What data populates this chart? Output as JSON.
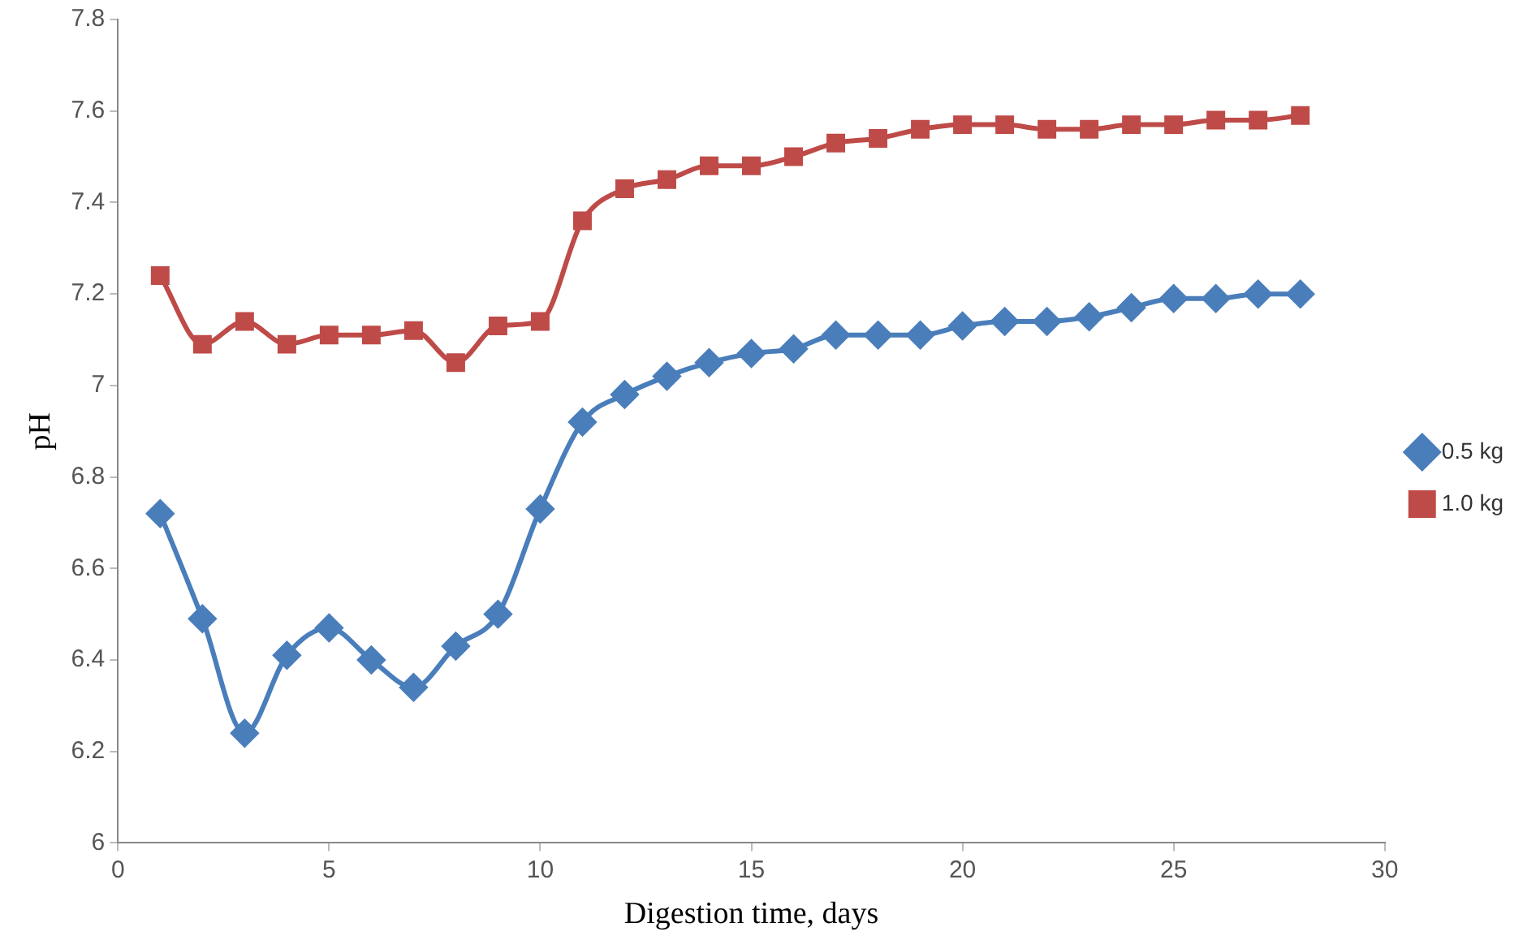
{
  "chart_data": {
    "type": "line",
    "xlabel": "Digestion time, days",
    "ylabel": "pH",
    "x": [
      1,
      2,
      3,
      4,
      5,
      6,
      7,
      8,
      9,
      10,
      11,
      12,
      13,
      14,
      15,
      16,
      17,
      18,
      19,
      20,
      21,
      22,
      23,
      24,
      25,
      26,
      27,
      28
    ],
    "series": [
      {
        "name": "0.5 kg",
        "color": "#4a7ebb",
        "marker": "diamond",
        "values": [
          6.72,
          6.49,
          6.24,
          6.41,
          6.47,
          6.4,
          6.34,
          6.43,
          6.5,
          6.73,
          6.92,
          6.98,
          7.02,
          7.05,
          7.07,
          7.08,
          7.11,
          7.11,
          7.11,
          7.13,
          7.14,
          7.14,
          7.15,
          7.17,
          7.19,
          7.19,
          7.2,
          7.2
        ]
      },
      {
        "name": "1.0 kg",
        "color": "#be4b48",
        "marker": "square",
        "values": [
          7.24,
          7.09,
          7.14,
          7.09,
          7.11,
          7.11,
          7.12,
          7.05,
          7.13,
          7.14,
          7.36,
          7.43,
          7.45,
          7.48,
          7.48,
          7.5,
          7.53,
          7.54,
          7.56,
          7.57,
          7.57,
          7.56,
          7.56,
          7.57,
          7.57,
          7.58,
          7.58,
          7.59
        ]
      }
    ],
    "xlim": [
      0,
      30
    ],
    "xticks": [
      0,
      5,
      10,
      15,
      20,
      25,
      30
    ],
    "ylim": [
      6,
      7.8
    ],
    "yticks": [
      6,
      6.2,
      6.4,
      6.6,
      6.8,
      7,
      7.2,
      7.4,
      7.6,
      7.8
    ],
    "grid": false,
    "legend": "right"
  }
}
